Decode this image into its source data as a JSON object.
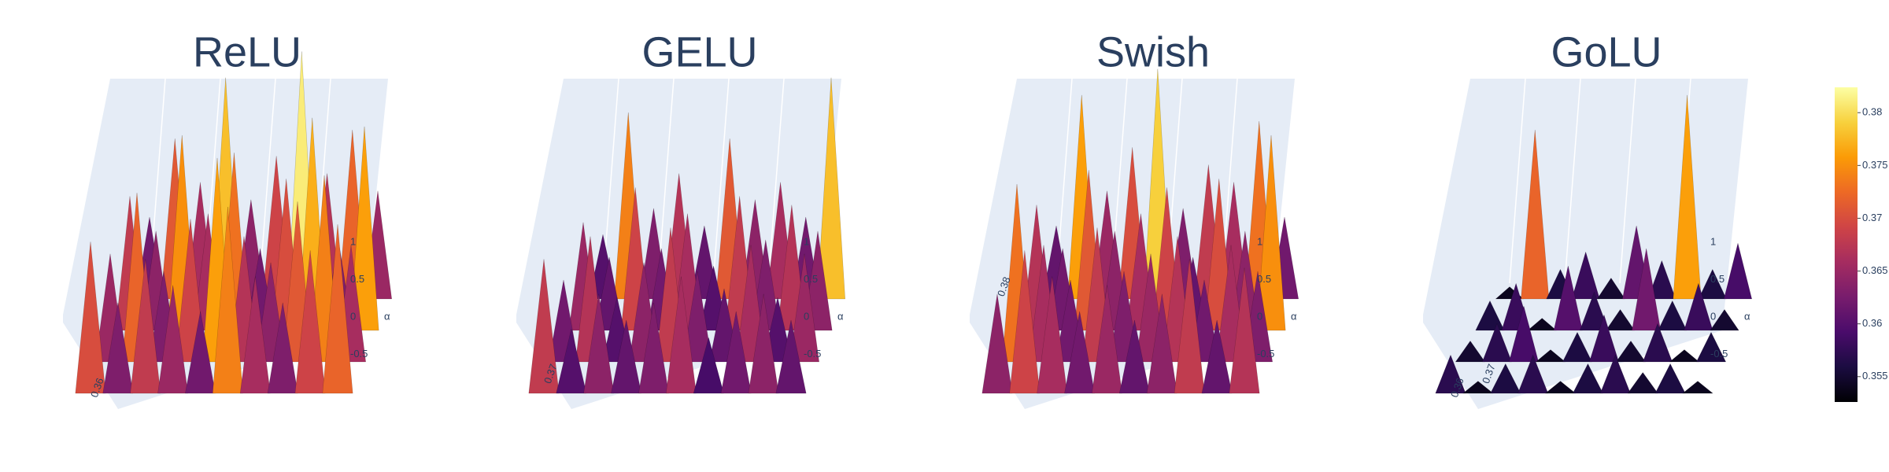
{
  "chart_data": [
    {
      "type": "surface",
      "title": "ReLU",
      "ylabel": "α",
      "ylim": [
        -1,
        1
      ],
      "yticks": [
        1,
        0.5,
        0,
        -0.5
      ],
      "zlim": [
        0.3526,
        0.3824
      ],
      "zticks": [
        0.36
      ],
      "z": [
        [
          0.362,
          0.371,
          0.366,
          0.378,
          0.364,
          0.369,
          0.381,
          0.367,
          0.372,
          0.365
        ],
        [
          0.368,
          0.364,
          0.375,
          0.366,
          0.373,
          0.362,
          0.37,
          0.377,
          0.363,
          0.376
        ],
        [
          0.365,
          0.372,
          0.363,
          0.369,
          0.376,
          0.367,
          0.364,
          0.371,
          0.374,
          0.366
        ],
        [
          0.37,
          0.363,
          0.368,
          0.365,
          0.362,
          0.374,
          0.366,
          0.363,
          0.369,
          0.372
        ]
      ]
    },
    {
      "type": "surface",
      "title": "GELU",
      "ylabel": "α",
      "ylim": [
        -1,
        1
      ],
      "yticks": [
        1,
        0.5,
        0,
        -0.5
      ],
      "zlim": [
        0.3526,
        0.3824
      ],
      "zticks": [
        0.37
      ],
      "z": [
        [
          0.36,
          0.374,
          0.363,
          0.367,
          0.361,
          0.371,
          0.364,
          0.366,
          0.362,
          0.378
        ],
        [
          0.365,
          0.361,
          0.369,
          0.362,
          0.366,
          0.36,
          0.368,
          0.363,
          0.367,
          0.364
        ],
        [
          0.362,
          0.367,
          0.36,
          0.364,
          0.368,
          0.363,
          0.361,
          0.366,
          0.36,
          0.365
        ],
        [
          0.368,
          0.36,
          0.364,
          0.361,
          0.363,
          0.366,
          0.359,
          0.362,
          0.364,
          0.361
        ]
      ]
    },
    {
      "type": "surface",
      "title": "Swish",
      "ylabel": "α",
      "ylim": [
        -1,
        1
      ],
      "yticks": [
        1,
        0.5,
        0,
        -0.5
      ],
      "zlim": [
        0.3526,
        0.3824
      ],
      "zticks": [
        0.38
      ],
      "z": [
        [
          0.361,
          0.376,
          0.365,
          0.37,
          0.379,
          0.363,
          0.368,
          0.366,
          0.373,
          0.362
        ],
        [
          0.367,
          0.362,
          0.371,
          0.364,
          0.366,
          0.369,
          0.361,
          0.37,
          0.364,
          0.375
        ],
        [
          0.373,
          0.366,
          0.362,
          0.368,
          0.363,
          0.365,
          0.367,
          0.362,
          0.366,
          0.363
        ],
        [
          0.364,
          0.369,
          0.366,
          0.362,
          0.365,
          0.361,
          0.364,
          0.368,
          0.361,
          0.367
        ]
      ]
    },
    {
      "type": "surface",
      "title": "GoLU",
      "ylabel": "α",
      "ylim": [
        -1,
        1
      ],
      "yticks": [
        1,
        0.5,
        0,
        -0.5
      ],
      "zlim": [
        0.3526,
        0.3824
      ],
      "zticks": [
        0.36,
        0.37
      ],
      "z": [
        [
          0.354,
          0.372,
          0.356,
          0.358,
          0.355,
          0.361,
          0.357,
          0.376,
          0.356,
          0.359
        ],
        [
          0.356,
          0.358,
          0.354,
          0.36,
          0.357,
          0.355,
          0.362,
          0.356,
          0.358,
          0.355
        ],
        [
          0.355,
          0.357,
          0.359,
          0.354,
          0.356,
          0.358,
          0.355,
          0.357,
          0.354,
          0.356
        ],
        [
          0.357,
          0.354,
          0.356,
          0.357,
          0.354,
          0.356,
          0.357,
          0.355,
          0.356,
          0.354
        ]
      ]
    }
  ],
  "colorbar": {
    "range": [
      0.3526,
      0.3824
    ],
    "ticks": [
      0.355,
      0.36,
      0.365,
      0.37,
      0.375,
      0.38
    ],
    "colors": [
      "#000004",
      "#1b0c41",
      "#4a0c6b",
      "#781c6d",
      "#a52c60",
      "#cf4446",
      "#ed6925",
      "#fb9b06",
      "#f7d13d",
      "#fcffa4"
    ]
  }
}
